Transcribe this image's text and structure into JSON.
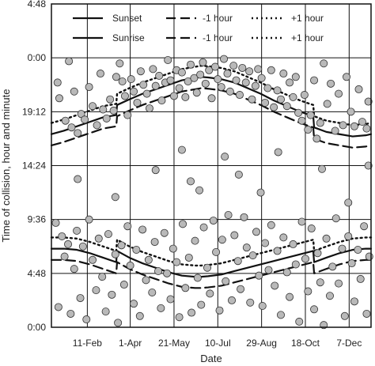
{
  "chart_data": {
    "type": "scatter",
    "xlabel": "Date",
    "ylabel": "Time of collision, hour and minute",
    "x_ticks": [
      {
        "label": "11-Feb",
        "value": 42
      },
      {
        "label": "1-Apr",
        "value": 91
      },
      {
        "label": "21-May",
        "value": 141
      },
      {
        "label": "10-Jul",
        "value": 191
      },
      {
        "label": "29-Aug",
        "value": 241
      },
      {
        "label": "18-Oct",
        "value": 291
      },
      {
        "label": "7-Dec",
        "value": 341
      }
    ],
    "y_ticks": [
      {
        "label": "0:00",
        "value": 0
      },
      {
        "label": "4:48",
        "value": 4.8
      },
      {
        "label": "9:36",
        "value": 9.6
      },
      {
        "label": "14:24",
        "value": 14.4
      },
      {
        "label": "19:12",
        "value": 19.2
      },
      {
        "label": "0:00",
        "value": 24
      },
      {
        "label": "4:48",
        "value": 28.8
      }
    ],
    "xlim": [
      1,
      366
    ],
    "ylim": [
      0,
      28.8
    ],
    "grid": true,
    "legend": [
      {
        "label": "Sunset",
        "style": "solid"
      },
      {
        "label": "-1 hour",
        "style": "dashed"
      },
      {
        "label": "+1 hour",
        "style": "dotted"
      },
      {
        "label": "Sunrise",
        "style": "solid"
      },
      {
        "label": "-1 hour",
        "style": "dashed"
      },
      {
        "label": "+1 hour",
        "style": "dotted"
      }
    ],
    "series": [
      {
        "id": "sunset",
        "style": "solid",
        "x": [
          1,
          15,
          30,
          45,
          60,
          75,
          76,
          90,
          105,
          120,
          135,
          150,
          165,
          172,
          180,
          195,
          210,
          225,
          240,
          255,
          270,
          285,
          300,
          301,
          315,
          330,
          345,
          360,
          366
        ],
        "y": [
          17.2,
          17.5,
          17.9,
          18.3,
          18.7,
          18.9,
          19.8,
          20.3,
          20.8,
          21.2,
          21.6,
          22.0,
          22.2,
          22.3,
          22.25,
          22.1,
          21.8,
          21.3,
          20.8,
          20.2,
          19.7,
          19.2,
          18.8,
          17.8,
          17.4,
          17.2,
          17.0,
          17.1,
          17.2
        ]
      },
      {
        "id": "sunset-minus-1h",
        "style": "dashed",
        "x": [
          1,
          15,
          30,
          45,
          60,
          75,
          76,
          90,
          105,
          120,
          135,
          150,
          165,
          172,
          180,
          195,
          210,
          225,
          240,
          255,
          270,
          285,
          300,
          301,
          315,
          330,
          345,
          360,
          366
        ],
        "y": [
          16.2,
          16.5,
          16.9,
          17.3,
          17.7,
          17.9,
          18.8,
          19.3,
          19.8,
          20.2,
          20.6,
          21.0,
          21.2,
          21.3,
          21.25,
          21.1,
          20.8,
          20.3,
          19.8,
          19.2,
          18.7,
          18.2,
          17.8,
          16.8,
          16.4,
          16.2,
          16.0,
          16.1,
          16.2
        ]
      },
      {
        "id": "sunset-plus-1h",
        "style": "dotted",
        "x": [
          1,
          15,
          30,
          45,
          60,
          75,
          76,
          90,
          105,
          120,
          135,
          150,
          165,
          172,
          180,
          195,
          210,
          225,
          240,
          255,
          270,
          285,
          300,
          301,
          315,
          330,
          345,
          360,
          366
        ],
        "y": [
          18.2,
          18.5,
          18.9,
          19.3,
          19.7,
          19.9,
          20.8,
          21.3,
          21.8,
          22.2,
          22.6,
          23.0,
          23.2,
          23.3,
          23.25,
          23.1,
          22.8,
          22.3,
          21.8,
          21.2,
          20.7,
          20.2,
          19.8,
          18.8,
          18.4,
          18.2,
          18.0,
          18.1,
          18.2
        ]
      },
      {
        "id": "sunrise",
        "style": "solid",
        "x": [
          1,
          15,
          30,
          45,
          60,
          75,
          76,
          90,
          105,
          120,
          135,
          150,
          165,
          172,
          180,
          195,
          210,
          225,
          240,
          255,
          270,
          285,
          300,
          301,
          315,
          330,
          345,
          360,
          366
        ],
        "y": [
          7.0,
          7.0,
          6.9,
          6.6,
          6.2,
          5.8,
          6.8,
          6.2,
          5.7,
          5.3,
          4.9,
          4.6,
          4.5,
          4.5,
          4.55,
          4.7,
          5.0,
          5.3,
          5.6,
          5.9,
          6.2,
          6.5,
          6.8,
          5.8,
          6.2,
          6.6,
          6.9,
          7.0,
          7.0
        ]
      },
      {
        "id": "sunrise-minus-1h",
        "style": "dashed",
        "x": [
          1,
          15,
          30,
          45,
          60,
          75,
          76,
          90,
          105,
          120,
          135,
          150,
          165,
          172,
          180,
          195,
          210,
          225,
          240,
          255,
          270,
          285,
          300,
          301,
          315,
          330,
          345,
          360,
          366
        ],
        "y": [
          6.0,
          6.0,
          5.9,
          5.6,
          5.2,
          4.8,
          5.8,
          5.2,
          4.7,
          4.3,
          3.9,
          3.6,
          3.5,
          3.5,
          3.55,
          3.7,
          4.0,
          4.3,
          4.6,
          4.9,
          5.2,
          5.5,
          5.8,
          4.8,
          5.2,
          5.6,
          5.9,
          6.0,
          6.0
        ]
      },
      {
        "id": "sunrise-plus-1h",
        "style": "dotted",
        "x": [
          1,
          15,
          30,
          45,
          60,
          75,
          76,
          90,
          105,
          120,
          135,
          150,
          165,
          172,
          180,
          195,
          210,
          225,
          240,
          255,
          270,
          285,
          300,
          301,
          315,
          330,
          345,
          360,
          366
        ],
        "y": [
          8.0,
          8.0,
          7.9,
          7.6,
          7.2,
          6.8,
          7.8,
          7.2,
          6.7,
          6.3,
          5.9,
          5.6,
          5.5,
          5.5,
          5.55,
          5.7,
          6.0,
          6.3,
          6.6,
          6.9,
          7.2,
          7.5,
          7.8,
          6.8,
          7.2,
          7.6,
          7.9,
          8.0,
          8.0
        ]
      }
    ],
    "points": [
      [
        8,
        21.8
      ],
      [
        10,
        20.4
      ],
      [
        17,
        18.4
      ],
      [
        21,
        23.7
      ],
      [
        24,
        17.8
      ],
      [
        27,
        21.0
      ],
      [
        31,
        17.3
      ],
      [
        35,
        19.0
      ],
      [
        39,
        18.5
      ],
      [
        44,
        21.4
      ],
      [
        48,
        19.7
      ],
      [
        53,
        18.0
      ],
      [
        57,
        22.6
      ],
      [
        60,
        19.4
      ],
      [
        64,
        18.6
      ],
      [
        68,
        20.3
      ],
      [
        72,
        19.3
      ],
      [
        75,
        22.3
      ],
      [
        79,
        23.5
      ],
      [
        82,
        21.9
      ],
      [
        85,
        20.6
      ],
      [
        88,
        18.9
      ],
      [
        92,
        22.1
      ],
      [
        95,
        21.0
      ],
      [
        99,
        20.0
      ],
      [
        103,
        22.8
      ],
      [
        106,
        21.6
      ],
      [
        110,
        20.8
      ],
      [
        113,
        19.5
      ],
      [
        117,
        23.0
      ],
      [
        120,
        21.5
      ],
      [
        124,
        22.4
      ],
      [
        127,
        20.2
      ],
      [
        131,
        21.8
      ],
      [
        134,
        23.8
      ],
      [
        137,
        22.0
      ],
      [
        141,
        20.6
      ],
      [
        144,
        22.9
      ],
      [
        147,
        21.3
      ],
      [
        150,
        22.7
      ],
      [
        154,
        20.5
      ],
      [
        157,
        21.9
      ],
      [
        160,
        23.4
      ],
      [
        164,
        22.2
      ],
      [
        167,
        20.9
      ],
      [
        171,
        22.5
      ],
      [
        174,
        23.6
      ],
      [
        177,
        21.7
      ],
      [
        181,
        22.9
      ],
      [
        184,
        20.4
      ],
      [
        188,
        23.2
      ],
      [
        191,
        22.1
      ],
      [
        195,
        21.4
      ],
      [
        198,
        23.9
      ],
      [
        202,
        22.6
      ],
      [
        205,
        21.0
      ],
      [
        209,
        23.3
      ],
      [
        212,
        22.0
      ],
      [
        216,
        20.7
      ],
      [
        219,
        23.1
      ],
      [
        223,
        21.8
      ],
      [
        227,
        22.8
      ],
      [
        230,
        20.3
      ],
      [
        234,
        21.5
      ],
      [
        237,
        23.0
      ],
      [
        241,
        22.2
      ],
      [
        245,
        20.0
      ],
      [
        248,
        21.3
      ],
      [
        252,
        22.9
      ],
      [
        255,
        19.6
      ],
      [
        259,
        21.1
      ],
      [
        263,
        20.3
      ],
      [
        266,
        22.6
      ],
      [
        270,
        19.7
      ],
      [
        273,
        21.8
      ],
      [
        277,
        20.5
      ],
      [
        280,
        22.3
      ],
      [
        283,
        19.1
      ],
      [
        287,
        18.4
      ],
      [
        290,
        20.7
      ],
      [
        294,
        17.6
      ],
      [
        297,
        18.9
      ],
      [
        301,
        22.0
      ],
      [
        304,
        16.8
      ],
      [
        308,
        18.2
      ],
      [
        312,
        23.5
      ],
      [
        316,
        19.9
      ],
      [
        320,
        21.7
      ],
      [
        325,
        17.5
      ],
      [
        329,
        20.8
      ],
      [
        334,
        18.0
      ],
      [
        338,
        22.3
      ],
      [
        343,
        19.2
      ],
      [
        347,
        17.9
      ],
      [
        352,
        21.2
      ],
      [
        356,
        18.3
      ],
      [
        361,
        17.7
      ],
      [
        363,
        20.1
      ],
      [
        6,
        9.3
      ],
      [
        9,
        1.8
      ],
      [
        13,
        8.1
      ],
      [
        16,
        6.3
      ],
      [
        20,
        7.4
      ],
      [
        23,
        1.2
      ],
      [
        27,
        5.2
      ],
      [
        30,
        8.6
      ],
      [
        34,
        2.6
      ],
      [
        37,
        7.2
      ],
      [
        41,
        0.7
      ],
      [
        44,
        9.6
      ],
      [
        48,
        6.0
      ],
      [
        52,
        3.3
      ],
      [
        55,
        7.9
      ],
      [
        59,
        4.5
      ],
      [
        63,
        1.4
      ],
      [
        66,
        8.3
      ],
      [
        70,
        2.9
      ],
      [
        74,
        6.5
      ],
      [
        77,
        0.4
      ],
      [
        81,
        7.3
      ],
      [
        84,
        3.8
      ],
      [
        88,
        9.0
      ],
      [
        91,
        5.5
      ],
      [
        95,
        2.1
      ],
      [
        98,
        6.9
      ],
      [
        102,
        1.0
      ],
      [
        105,
        8.7
      ],
      [
        109,
        4.2
      ],
      [
        112,
        6.0
      ],
      [
        116,
        3.1
      ],
      [
        119,
        7.6
      ],
      [
        123,
        5.0
      ],
      [
        126,
        1.7
      ],
      [
        130,
        8.4
      ],
      [
        133,
        4.8
      ],
      [
        137,
        2.5
      ],
      [
        140,
        7.0
      ],
      [
        144,
        5.8
      ],
      [
        147,
        0.9
      ],
      [
        151,
        9.2
      ],
      [
        154,
        3.5
      ],
      [
        158,
        6.2
      ],
      [
        161,
        1.3
      ],
      [
        165,
        7.7
      ],
      [
        168,
        4.4
      ],
      [
        172,
        2.0
      ],
      [
        175,
        8.9
      ],
      [
        179,
        5.3
      ],
      [
        182,
        3.0
      ],
      [
        186,
        9.5
      ],
      [
        189,
        6.7
      ],
      [
        193,
        1.5
      ],
      [
        196,
        7.8
      ],
      [
        200,
        4.1
      ],
      [
        203,
        10.0
      ],
      [
        207,
        2.4
      ],
      [
        210,
        8.2
      ],
      [
        214,
        5.9
      ],
      [
        217,
        3.4
      ],
      [
        221,
        9.8
      ],
      [
        224,
        7.1
      ],
      [
        228,
        2.2
      ],
      [
        231,
        6.4
      ],
      [
        235,
        8.5
      ],
      [
        238,
        4.6
      ],
      [
        242,
        1.9
      ],
      [
        245,
        7.5
      ],
      [
        249,
        5.1
      ],
      [
        252,
        9.1
      ],
      [
        256,
        3.7
      ],
      [
        259,
        6.8
      ],
      [
        263,
        1.1
      ],
      [
        266,
        8.0
      ],
      [
        270,
        4.9
      ],
      [
        273,
        2.7
      ],
      [
        277,
        7.4
      ],
      [
        280,
        5.6
      ],
      [
        284,
        0.5
      ],
      [
        287,
        9.4
      ],
      [
        291,
        6.1
      ],
      [
        294,
        3.2
      ],
      [
        298,
        8.8
      ],
      [
        301,
        1.6
      ],
      [
        305,
        6.6
      ],
      [
        308,
        4.0
      ],
      [
        312,
        0.2
      ],
      [
        315,
        7.9
      ],
      [
        319,
        2.8
      ],
      [
        322,
        5.4
      ],
      [
        326,
        9.7
      ],
      [
        329,
        3.9
      ],
      [
        333,
        7.0
      ],
      [
        336,
        1.0
      ],
      [
        340,
        8.1
      ],
      [
        344,
        5.7
      ],
      [
        347,
        2.3
      ],
      [
        351,
        6.9
      ],
      [
        354,
        4.3
      ],
      [
        358,
        9.0
      ],
      [
        361,
        1.2
      ],
      [
        364,
        6.3
      ],
      [
        31,
        13.2
      ],
      [
        74,
        11.6
      ],
      [
        120,
        14.0
      ],
      [
        150,
        15.8
      ],
      [
        160,
        13.0
      ],
      [
        170,
        12.2
      ],
      [
        199,
        15.2
      ],
      [
        215,
        13.6
      ],
      [
        240,
        12.0
      ],
      [
        260,
        15.6
      ],
      [
        310,
        14.1
      ],
      [
        340,
        11.1
      ],
      [
        363,
        14.4
      ]
    ]
  }
}
